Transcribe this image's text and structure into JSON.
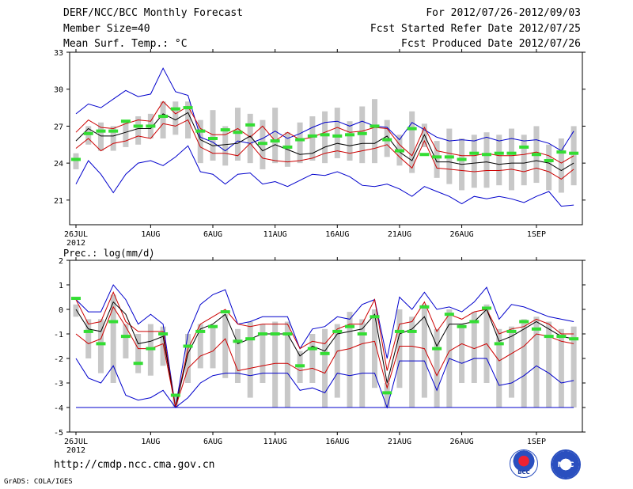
{
  "header": {
    "title": "DERF/NCC/BCC Monthly Forecast",
    "member": "Member Size=40",
    "variable": "Mean Surf. Temp.: °C",
    "period": "For 2012/07/26-2012/09/03",
    "started": "Fcst Started Refer Date 2012/07/25",
    "produced": "Fcst Produced Date 2012/07/26"
  },
  "footer": {
    "url": "http://cmdp.ncc.cma.gov.cn",
    "grads": "GrADS: COLA/IGES",
    "logo_left": "BCC",
    "logo_right": "NCC"
  },
  "colors": {
    "envelope": "#0000cc",
    "inner": "#cc0000",
    "mean": "#000000",
    "box": "#c8c8c8",
    "marker": "#33dd33"
  },
  "chart_data": [
    {
      "type": "line",
      "title": "Mean Surf. Temp.: °C",
      "x_ticks": [
        "26JUL",
        "1AUG",
        "6AUG",
        "11AUG",
        "16AUG",
        "21AUG",
        "26AUG",
        "1SEP"
      ],
      "x_tick_days": [
        0,
        6,
        11,
        16,
        21,
        26,
        31,
        37
      ],
      "x_year_label": "2012",
      "ylim": [
        19,
        33
      ],
      "yticks": [
        21,
        24,
        27,
        30,
        33
      ],
      "series": [
        {
          "name": "max",
          "values": [
            28.0,
            28.8,
            28.5,
            29.2,
            29.9,
            29.4,
            29.6,
            31.7,
            29.8,
            29.5,
            26.1,
            25.7,
            25.0,
            25.8,
            25.6,
            26.0,
            26.6,
            26.0,
            26.4,
            26.9,
            27.3,
            27.4,
            27.0,
            27.4,
            27.0,
            26.9,
            25.9,
            27.3,
            26.7,
            26.1,
            25.8,
            25.9,
            25.8,
            26.1,
            25.8,
            26.0,
            25.8,
            25.9,
            25.6,
            25.0,
            26.6
          ]
        },
        {
          "name": "upper",
          "values": [
            26.5,
            27.5,
            26.9,
            26.8,
            27.2,
            27.5,
            27.4,
            29.0,
            28.0,
            28.6,
            26.8,
            26.3,
            26.3,
            26.8,
            26.1,
            27.0,
            25.8,
            26.5,
            25.9,
            26.1,
            26.5,
            26.9,
            26.5,
            26.6,
            26.9,
            26.8,
            25.5,
            24.6,
            26.9,
            25.0,
            24.8,
            24.6,
            24.6,
            24.8,
            24.6,
            24.6,
            24.7,
            24.9,
            24.6,
            24.0,
            24.6
          ]
        },
        {
          "name": "mean",
          "values": [
            25.8,
            26.8,
            26.2,
            26.2,
            26.5,
            26.8,
            26.8,
            28.0,
            27.5,
            28.1,
            25.9,
            25.4,
            25.5,
            25.6,
            26.2,
            25.0,
            25.5,
            25.1,
            24.7,
            24.8,
            25.3,
            25.6,
            25.4,
            25.6,
            25.6,
            26.2,
            24.9,
            24.2,
            26.3,
            24.1,
            24.1,
            23.9,
            24.0,
            24.1,
            23.9,
            24.0,
            24.0,
            24.2,
            24.0,
            23.4,
            24.0
          ]
        },
        {
          "name": "lower",
          "values": [
            25.2,
            26.0,
            25.0,
            25.6,
            25.8,
            26.2,
            26.0,
            27.2,
            27.0,
            27.5,
            25.3,
            24.8,
            24.8,
            24.6,
            25.6,
            24.4,
            24.2,
            24.1,
            24.2,
            24.4,
            24.8,
            25.0,
            24.8,
            25.0,
            25.2,
            25.5,
            24.5,
            23.6,
            25.8,
            23.6,
            23.5,
            23.4,
            23.3,
            23.4,
            23.4,
            23.5,
            23.3,
            23.6,
            23.3,
            22.7,
            23.5
          ]
        },
        {
          "name": "min",
          "values": [
            22.3,
            24.2,
            23.1,
            21.6,
            23.1,
            24.0,
            24.2,
            23.8,
            24.5,
            25.4,
            23.3,
            23.1,
            22.3,
            23.1,
            23.2,
            22.3,
            22.5,
            22.1,
            22.6,
            23.1,
            23.0,
            23.3,
            22.9,
            22.2,
            22.1,
            22.3,
            21.9,
            21.3,
            22.1,
            21.7,
            21.3,
            20.7,
            21.3,
            21.1,
            21.3,
            21.1,
            20.8,
            21.3,
            21.7,
            20.5,
            20.6
          ]
        },
        {
          "name": "observed",
          "values": [
            24.3,
            26.4,
            26.6,
            26.6,
            27.4,
            27.0,
            27.0,
            27.8,
            28.4,
            28.5,
            26.6,
            26.0,
            26.7,
            26.5,
            27.1,
            25.6,
            25.8,
            25.3,
            25.9,
            26.2,
            26.3,
            26.2,
            26.3,
            26.4,
            27.0,
            25.9,
            25.0,
            26.8,
            24.7,
            24.5,
            24.5,
            24.3,
            24.8,
            24.7,
            24.8,
            24.8,
            25.3,
            24.7,
            24.2,
            24.9,
            24.8
          ]
        }
      ],
      "box_low": [
        23.5,
        25.5,
        25.0,
        25.0,
        25.3,
        25.5,
        26.0,
        26.0,
        26.3,
        26.0,
        24.0,
        24.2,
        23.8,
        24.2,
        24.0,
        23.5,
        24.0,
        23.7,
        24.0,
        24.2,
        24.0,
        24.4,
        24.2,
        24.0,
        24.0,
        24.5,
        23.8,
        23.2,
        25.3,
        22.8,
        22.3,
        21.8,
        22.0,
        22.0,
        22.2,
        21.8,
        22.2,
        22.4,
        21.8,
        21.6,
        22.2
      ],
      "box_high": [
        24.8,
        27.0,
        27.3,
        27.0,
        27.5,
        27.8,
        28.0,
        29.0,
        29.0,
        29.0,
        27.5,
        28.3,
        27.0,
        28.5,
        28.0,
        27.5,
        28.5,
        26.5,
        27.3,
        27.8,
        28.2,
        28.5,
        27.4,
        28.6,
        29.2,
        27.5,
        26.3,
        28.2,
        27.2,
        25.8,
        26.8,
        26.0,
        26.3,
        26.5,
        26.3,
        26.8,
        26.3,
        27.0,
        25.5,
        26.0,
        27.0
      ]
    },
    {
      "type": "line",
      "title": "Prec.: log(mm/d)",
      "x_ticks": [
        "26JUL",
        "1AUG",
        "6AUG",
        "11AUG",
        "16AUG",
        "21AUG",
        "26AUG",
        "1SEP"
      ],
      "x_tick_days": [
        0,
        6,
        11,
        16,
        21,
        26,
        31,
        37
      ],
      "x_year_label": "2012",
      "ylim": [
        -5,
        2
      ],
      "yticks": [
        -5,
        -4,
        -3,
        -2,
        -1,
        0,
        1,
        2
      ],
      "series": [
        {
          "name": "max",
          "values": [
            0.4,
            -0.1,
            -0.1,
            1.0,
            0.4,
            -0.6,
            -0.2,
            -0.6,
            -4.0,
            -1.0,
            0.2,
            0.6,
            0.8,
            -0.6,
            -0.5,
            -0.3,
            -0.3,
            -0.3,
            -1.6,
            -0.8,
            -0.7,
            -0.3,
            -0.4,
            0.2,
            0.4,
            -2.0,
            0.5,
            0.0,
            0.7,
            0.0,
            0.1,
            -0.1,
            0.3,
            0.9,
            -0.4,
            0.2,
            0.1,
            -0.1,
            -0.3,
            -0.4,
            -0.5
          ]
        },
        {
          "name": "upper",
          "values": [
            0.4,
            -0.6,
            -0.5,
            0.7,
            -0.5,
            -0.9,
            -0.9,
            -0.9,
            -4.0,
            -1.6,
            -0.6,
            -0.3,
            0.0,
            -0.6,
            -0.7,
            -0.6,
            -0.6,
            -0.6,
            -1.6,
            -1.3,
            -1.4,
            -0.8,
            -0.6,
            -0.6,
            0.4,
            -2.5,
            -0.6,
            -0.5,
            0.3,
            -0.9,
            -0.2,
            -0.4,
            -0.1,
            0.0,
            -1.0,
            -0.8,
            -0.7,
            -0.4,
            -0.6,
            -1.0,
            -1.0
          ]
        },
        {
          "name": "mean",
          "values": [
            0.0,
            -0.8,
            -0.9,
            0.3,
            -0.2,
            -1.4,
            -1.3,
            -1.1,
            -4.0,
            -1.8,
            -0.8,
            -0.6,
            -0.2,
            -1.4,
            -1.2,
            -1.0,
            -1.0,
            -1.0,
            -1.9,
            -1.5,
            -1.7,
            -1.0,
            -0.9,
            -0.8,
            -0.2,
            -3.0,
            -1.0,
            -0.8,
            -0.3,
            -1.5,
            -0.6,
            -0.6,
            -0.5,
            0.0,
            -1.3,
            -1.1,
            -0.8,
            -0.5,
            -0.8,
            -1.1,
            -1.2
          ]
        },
        {
          "name": "lower",
          "values": [
            -1.0,
            -1.4,
            -1.2,
            0.1,
            -0.7,
            -1.6,
            -1.6,
            -1.4,
            -4.0,
            -2.4,
            -1.9,
            -1.7,
            -1.2,
            -2.5,
            -2.4,
            -2.3,
            -2.2,
            -2.2,
            -2.5,
            -2.4,
            -2.6,
            -1.7,
            -1.6,
            -1.4,
            -1.3,
            -3.2,
            -1.5,
            -1.5,
            -1.6,
            -2.7,
            -1.7,
            -1.4,
            -1.6,
            -1.4,
            -2.1,
            -1.8,
            -1.5,
            -1.0,
            -1.1,
            -1.3,
            -1.4
          ]
        },
        {
          "name": "min",
          "values": [
            -2.0,
            -2.8,
            -3.0,
            -2.3,
            -3.5,
            -3.7,
            -3.6,
            -3.3,
            -4.0,
            -3.6,
            -3.0,
            -2.7,
            -2.6,
            -2.6,
            -2.7,
            -2.6,
            -2.6,
            -2.6,
            -3.3,
            -3.2,
            -3.4,
            -2.6,
            -2.7,
            -2.6,
            -2.6,
            -4.0,
            -2.1,
            -2.1,
            -2.1,
            -3.3,
            -2.0,
            -2.2,
            -2.0,
            -2.0,
            -3.1,
            -3.0,
            -2.7,
            -2.3,
            -2.6,
            -3.0,
            -2.9
          ]
        },
        {
          "name": "envelope_floor",
          "values": [
            -4.0,
            -4.0,
            -4.0,
            -4.0,
            -4.0,
            -4.0,
            -4.0,
            -4.0,
            -4.0,
            -4.0,
            -4.0,
            -4.0,
            -4.0,
            -4.0,
            -4.0,
            -4.0,
            -4.0,
            -4.0,
            -4.0,
            -4.0,
            -4.0,
            -4.0,
            -4.0,
            -4.0,
            -4.0,
            -4.0,
            -4.0,
            -4.0,
            -4.0,
            -4.0,
            -4.0,
            -4.0,
            -4.0,
            -4.0,
            -4.0,
            -4.0,
            -4.0,
            -4.0,
            -4.0,
            -4.0,
            -4.0
          ]
        },
        {
          "name": "observed",
          "values": [
            0.45,
            -0.9,
            -1.4,
            -0.5,
            -1.1,
            -2.2,
            -1.6,
            -1.0,
            -3.5,
            -1.5,
            -0.9,
            -0.7,
            -0.1,
            -1.3,
            -1.2,
            -1.0,
            -1.0,
            -1.0,
            -2.3,
            -1.6,
            -1.8,
            -0.9,
            -0.7,
            -1.0,
            -0.3,
            -3.4,
            -0.9,
            -0.9,
            0.1,
            -1.6,
            -0.2,
            -0.7,
            -0.5,
            0.05,
            -1.4,
            -0.9,
            -0.5,
            -0.8,
            -1.1,
            -1.1,
            -1.2
          ]
        }
      ],
      "box_low": [
        -0.3,
        -2.0,
        -2.6,
        -3.0,
        -2.0,
        -2.6,
        -2.7,
        -2.3,
        -4.0,
        -3.0,
        -2.4,
        -2.4,
        -2.8,
        -3.0,
        -3.6,
        -3.0,
        -4.0,
        -4.0,
        -3.0,
        -3.0,
        -4.0,
        -3.6,
        -4.0,
        -4.0,
        -3.2,
        -4.0,
        -3.2,
        -4.0,
        -3.6,
        -4.0,
        -4.0,
        -3.0,
        -3.0,
        -3.0,
        -4.0,
        -3.6,
        -4.0,
        -4.0,
        -4.0,
        -4.0,
        -4.0
      ],
      "box_high": [
        0.2,
        -0.4,
        -0.4,
        0.6,
        -0.6,
        -1.0,
        -0.6,
        -0.7,
        -3.5,
        -1.0,
        -0.6,
        -0.7,
        -0.2,
        -0.8,
        -0.5,
        -0.6,
        -0.5,
        -0.5,
        -1.7,
        -1.0,
        -0.8,
        -0.6,
        -0.1,
        -0.4,
        0.0,
        -3.0,
        0.0,
        -0.3,
        0.2,
        -0.8,
        0.0,
        -0.6,
        -0.1,
        0.2,
        -0.8,
        -0.7,
        -0.4,
        -0.3,
        -0.5,
        -0.8,
        -0.7
      ]
    }
  ]
}
